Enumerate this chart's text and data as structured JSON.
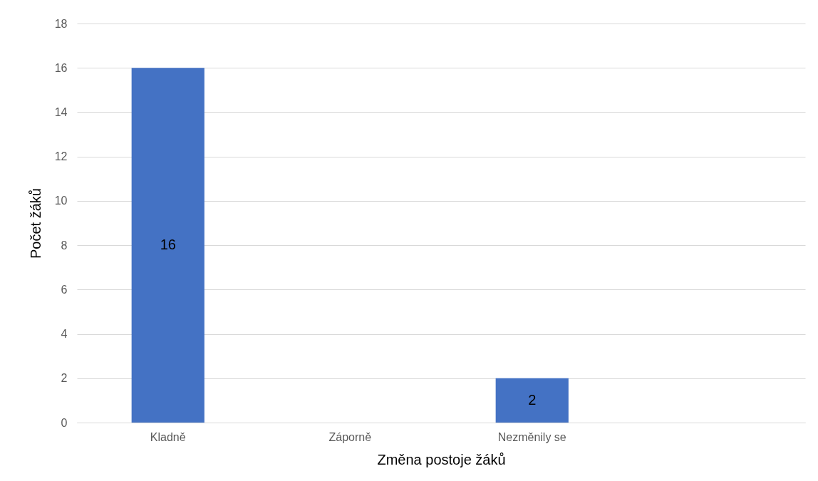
{
  "chart_data": {
    "type": "bar",
    "xlabel": "Změna postoje žáků",
    "ylabel": "Počet žáků",
    "categories": [
      "Kladně",
      "Záporně",
      "Nezměnily se",
      null
    ],
    "values": [
      16,
      0,
      2,
      null
    ],
    "value_labels": [
      "16",
      null,
      "2",
      null
    ],
    "color": "#4472c4",
    "ylim": [
      0,
      18
    ],
    "yticks": [
      0,
      2,
      4,
      6,
      8,
      10,
      12,
      14,
      16,
      18
    ],
    "grid": "y"
  }
}
